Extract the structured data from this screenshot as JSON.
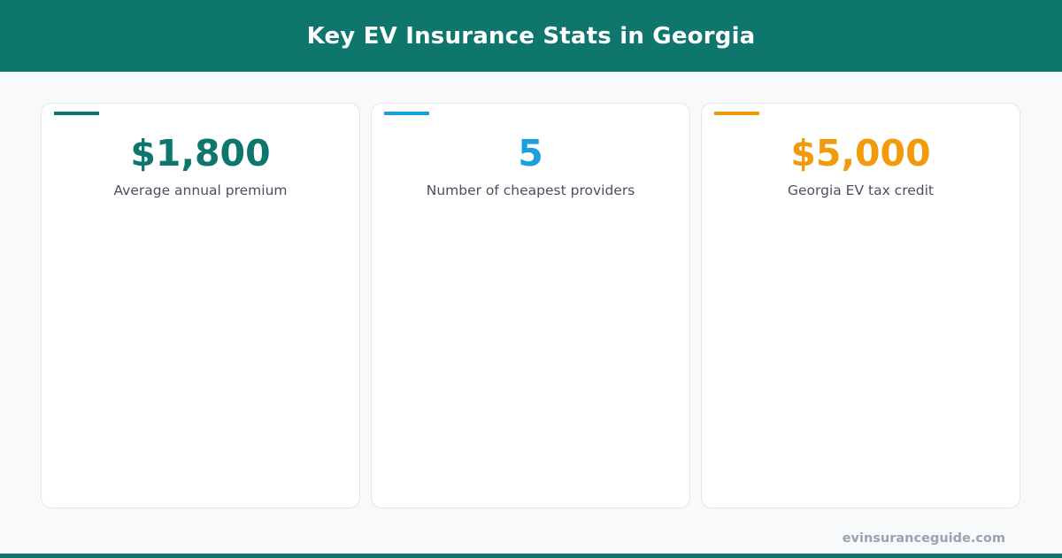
{
  "header": {
    "title": "Key EV Insurance Stats in Georgia"
  },
  "colors": {
    "brand": "#0f766e",
    "blue": "#1a9fe0",
    "orange": "#f29a0c"
  },
  "cards": [
    {
      "value": "$1,800",
      "label": "Average annual premium",
      "color": "#0f766e"
    },
    {
      "value": "5",
      "label": "Number of cheapest providers",
      "color": "#1a9fe0"
    },
    {
      "value": "$5,000",
      "label": "Georgia EV tax credit",
      "color": "#f29a0c"
    }
  ],
  "footer": {
    "site": "evinsuranceguide.com"
  }
}
